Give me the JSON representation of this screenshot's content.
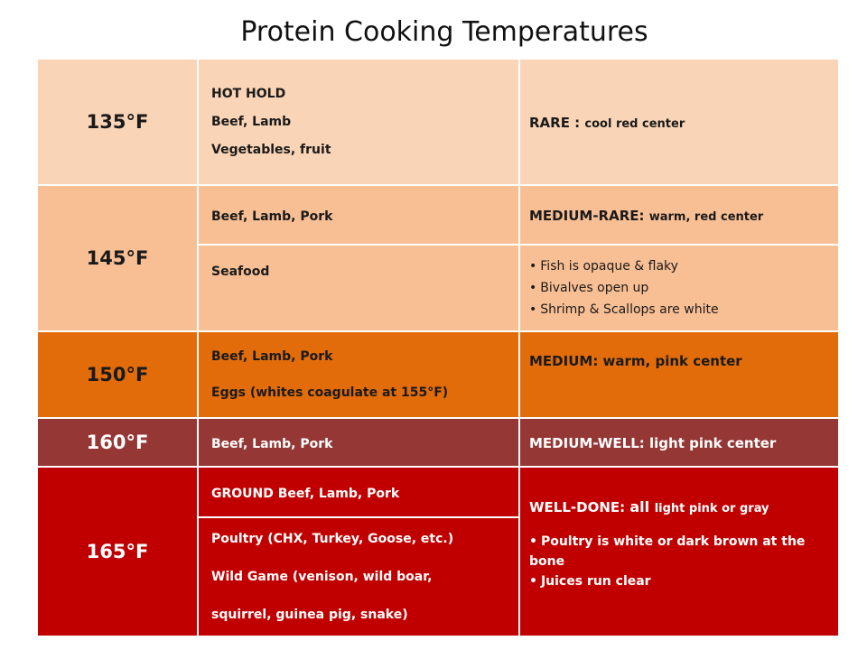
{
  "title": "Protein Cooking Temperatures",
  "colors": {
    "t135": "#fad4b6",
    "t145": "#f9bf94",
    "t150": "#e36c0a",
    "t160": "#953735",
    "t165": "#c00000"
  },
  "rows": {
    "r135": {
      "temp": "135°F",
      "foods": [
        "HOT HOLD",
        "Beef, Lamb",
        "Vegetables, fruit"
      ],
      "desc_main": "RARE : ",
      "desc_small": "cool red center"
    },
    "r145": {
      "temp": "145°F",
      "a_food": "Beef, Lamb, Pork",
      "a_desc_main": "MEDIUM-RARE: ",
      "a_desc_small": "warm, red center",
      "b_food": "Seafood",
      "b_bullets": [
        "Fish is opaque & flaky",
        "Bivalves open up",
        "Shrimp & Scallops are white"
      ]
    },
    "r150": {
      "temp": "150°F",
      "foods": [
        "Beef, Lamb, Pork",
        "Eggs (whites coagulate at 155°F)"
      ],
      "desc": "MEDIUM: warm, pink center"
    },
    "r160": {
      "temp": "160°F",
      "food": "Beef, Lamb, Pork",
      "desc": "MEDIUM-WELL:  light pink center"
    },
    "r165": {
      "temp": "165°F",
      "a_food": "GROUND Beef, Lamb, Pork",
      "desc_main": "WELL-DONE:  ",
      "desc_mid": "all ",
      "desc_small": "light pink or gray",
      "bullets": [
        "Poultry is white or dark brown at the bone",
        "Juices run clear"
      ],
      "b_foods": [
        "Poultry (CHX, Turkey, Goose, etc.)",
        "Wild Game (venison, wild boar,",
        "squirrel, guinea pig, snake)"
      ]
    }
  }
}
